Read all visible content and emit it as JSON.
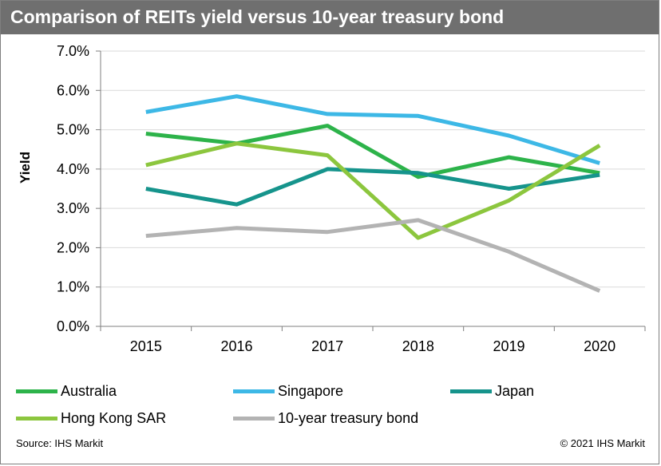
{
  "title": "Comparison of REITs yield versus 10-year treasury bond",
  "source": "Source: IHS Markit",
  "copyright": "© 2021 IHS Markit",
  "chart_data": {
    "type": "line",
    "x": [
      "2015",
      "2016",
      "2017",
      "2018",
      "2019",
      "2020"
    ],
    "ylabel": "Yield",
    "xlabel": "",
    "ylim": [
      0,
      7
    ],
    "yticks": [
      "0.0%",
      "1.0%",
      "2.0%",
      "3.0%",
      "4.0%",
      "5.0%",
      "6.0%",
      "7.0%"
    ],
    "grid": "horizontal",
    "legend": "bottom",
    "series": [
      {
        "name": "Australia",
        "color": "#2db34a",
        "values": [
          4.9,
          4.65,
          5.1,
          3.8,
          4.3,
          3.9
        ]
      },
      {
        "name": "Singapore",
        "color": "#3db8e6",
        "values": [
          5.45,
          5.85,
          5.4,
          5.35,
          4.85,
          4.15
        ]
      },
      {
        "name": "Japan",
        "color": "#16948c",
        "values": [
          3.5,
          3.1,
          4.0,
          3.9,
          3.5,
          3.85
        ]
      },
      {
        "name": "Hong Kong SAR",
        "color": "#8cc63e",
        "values": [
          4.1,
          4.65,
          4.35,
          2.25,
          3.2,
          4.6
        ]
      },
      {
        "name": "10-year treasury bond",
        "color": "#b3b3b3",
        "values": [
          2.3,
          2.5,
          2.4,
          2.7,
          1.9,
          0.9
        ]
      }
    ]
  }
}
